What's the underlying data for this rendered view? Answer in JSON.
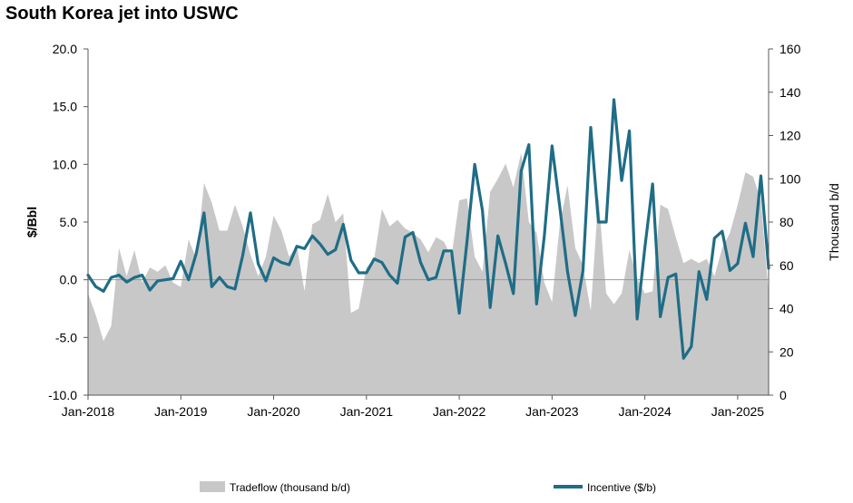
{
  "chart_data": {
    "type": "line",
    "title": "South Korea jet into USWC",
    "ylabel_left": "$/Bbl",
    "ylabel_right": "Thousand b/d",
    "ylim_left": [
      -10,
      20
    ],
    "ylim_right": [
      0,
      160
    ],
    "left_ticks": [
      "20.0",
      "15.0",
      "10.0",
      "5.0",
      "0.0",
      "-5.0",
      "-10.0"
    ],
    "right_ticks": [
      "160",
      "140",
      "120",
      "100",
      "80",
      "60",
      "40",
      "20",
      "0"
    ],
    "x_tick_labels": [
      "Jan-2018",
      "Jan-2019",
      "Jan-2020",
      "Jan-2021",
      "Jan-2022",
      "Jan-2023",
      "Jan-2024",
      "Jan-2025"
    ],
    "x_start": "Jan-2018",
    "n_months": 89,
    "series": [
      {
        "name": "Tradeflow (thousand b/d)",
        "type": "area",
        "axis": "right",
        "color": "#c8c8c8",
        "values": [
          47,
          37,
          25,
          32,
          68,
          55,
          67,
          52,
          59,
          57,
          60,
          52,
          50,
          72,
          63,
          98,
          89,
          76,
          76,
          88,
          78,
          65,
          55,
          64,
          83,
          76,
          64,
          69,
          48,
          79,
          81,
          93,
          80,
          84,
          38,
          40,
          59,
          63,
          86,
          78,
          81,
          77,
          75,
          72,
          66,
          73,
          71,
          64,
          90,
          91,
          64,
          57,
          94,
          100,
          107,
          96,
          112,
          80,
          75,
          52,
          43,
          79,
          97,
          68,
          60,
          39,
          92,
          47,
          42,
          47,
          67,
          54,
          47,
          48,
          88,
          86,
          73,
          61,
          63,
          61,
          63,
          55,
          68,
          75,
          88,
          103,
          101,
          90,
          47
        ]
      },
      {
        "name": "Incentive ($/b)",
        "type": "line",
        "axis": "left",
        "color": "#1f6d86",
        "values": [
          0.4,
          -0.6,
          -1.0,
          0.2,
          0.4,
          -0.2,
          0.2,
          0.4,
          -0.9,
          -0.1,
          0.0,
          0.1,
          1.6,
          0.0,
          2.3,
          5.8,
          -0.6,
          0.2,
          -0.6,
          -0.8,
          2.1,
          5.8,
          1.4,
          -0.1,
          1.9,
          1.5,
          1.3,
          2.9,
          2.7,
          3.8,
          3.1,
          2.2,
          2.6,
          4.8,
          1.7,
          0.6,
          0.6,
          1.8,
          1.5,
          0.4,
          -0.3,
          3.7,
          4.1,
          1.5,
          0.0,
          0.2,
          2.5,
          2.5,
          -2.9,
          3.3,
          10.0,
          6.0,
          -2.4,
          3.8,
          1.4,
          -1.2,
          9.4,
          11.7,
          -2.1,
          3.8,
          11.6,
          6.3,
          0.7,
          -3.1,
          0.8,
          13.2,
          5.0,
          5.0,
          15.6,
          8.6,
          12.9,
          -3.4,
          2.8,
          8.3,
          -3.2,
          0.2,
          0.5,
          -6.8,
          -5.8,
          0.7,
          -1.7,
          3.6,
          4.2,
          0.8,
          1.4,
          4.9,
          2.0,
          9.0,
          1.0
        ]
      }
    ],
    "legend": {
      "position": "bottom",
      "entries": [
        "Tradeflow (thousand b/d)",
        "Incentive ($/b)"
      ]
    }
  },
  "colors": {
    "area": "#c8c8c8",
    "line": "#1f6d86",
    "zero_line": "#999999",
    "axis": "#595959"
  }
}
